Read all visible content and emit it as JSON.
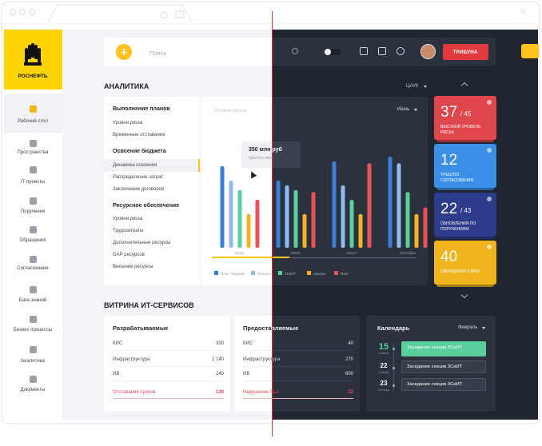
{
  "logo": "РОСНЕФТЬ",
  "nav": [
    "Рабочий стол",
    "Пространства",
    "IT-проекты",
    "Поручения",
    "Обращения",
    "Согласование",
    "База знаний",
    "Бизнес процессы",
    "Аналитика",
    "Документы"
  ],
  "header": {
    "search_placeholder": "Поиск",
    "button": "ТРИБУНА"
  },
  "analytics": {
    "title": "АНАЛИТИКА",
    "filter": "ЦАУК",
    "menu": [
      {
        "heading": "Выполнение планов",
        "items": [
          "Уровни риска",
          "Временные отставания"
        ]
      },
      {
        "heading": "Освоение бюджета",
        "items": [
          "Динамика освоения",
          "Распределение затрат",
          "Заключение договоров"
        ]
      },
      {
        "heading": "Ресурсное обеспечение",
        "items": [
          "Уровни риска",
          "Трудозатраты",
          "Дополнительные ресурсы",
          "GAP ресурсов",
          "Внешние ресурсы"
        ]
      }
    ],
    "chart": {
      "type": "bar",
      "title": "Уровни риска",
      "period": "Июнь",
      "tooltip": {
        "value": "350 млн руб",
        "caption": "прогноз, млн."
      },
      "categories": [
        "Июнь",
        "Июль",
        "Август",
        "Сентябрь"
      ],
      "series": [
        {
          "name": "План текущий",
          "color": "#3c7fdb",
          "values": [
            85,
            70,
            90,
            95
          ]
        },
        {
          "name": "Прогноз",
          "color": "#8fbbee",
          "values": [
            70,
            65,
            65,
            88
          ]
        },
        {
          "name": "ЗСиИТ",
          "color": "#5acf9d",
          "values": [
            60,
            60,
            50,
            58
          ]
        },
        {
          "name": "Заказы",
          "color": "#f4b324",
          "values": [
            35,
            35,
            35,
            35
          ]
        },
        {
          "name": "Факт",
          "color": "#ea5257",
          "values": [
            50,
            58,
            88,
            42
          ]
        }
      ],
      "ylim": [
        0,
        100
      ]
    }
  },
  "stats": [
    {
      "value": 37,
      "total": {
        "value": 45,
        "label": "/ 45"
      },
      "label": "ВЫСОКИЙ УРОВЕНЬ РИСКА",
      "color": "#e0474d"
    },
    {
      "value": 12,
      "label": "ТРЕБУЮТ СОГЛАСОВАНИЯ",
      "color": "#3b8fe8"
    },
    {
      "value": 22,
      "total": {
        "value": 43,
        "label": "/ 43"
      },
      "label": "ОБНОВЛЕНИЯ ПО ПОРУЧЕНИЯМ",
      "color": "#2e3c8c"
    },
    {
      "value": 40,
      "label": "ОБРАЩЕНИЯ К ВАМ",
      "color": "#f0b41c"
    }
  ],
  "services": {
    "title": "ВИТРИНА ИТ-СЕРВИСОВ",
    "cards": [
      {
        "title": "Разрабатываемые",
        "rows": [
          {
            "label": "КИС",
            "value": 330
          },
          {
            "label": "Инфраструктура",
            "value": {
              "value": 1140,
              "label": "1 140"
            }
          },
          {
            "label": "ИВ",
            "value": 240
          }
        ],
        "alert": {
          "label": "Отставание сроков",
          "value": 130
        }
      },
      {
        "title": "Предоставляемые",
        "rows": [
          {
            "label": "КИС",
            "value": 40
          },
          {
            "label": "Инфраструктура",
            "value": 270
          },
          {
            "label": "ИВ",
            "value": 600
          }
        ],
        "alert": {
          "label": "Нарушение SLA",
          "value": 22
        }
      }
    ]
  },
  "calendar": {
    "title": "Календарь",
    "month": "Февраль",
    "events": [
      {
        "day": 15,
        "weekday": "четверг",
        "title": "Заседание секции ЗСиИТ"
      },
      {
        "day": 22,
        "weekday": "четверг",
        "title": "Заседание секции ЗСиИТ"
      },
      {
        "day": 23,
        "weekday": "пятница",
        "title": "Заседание секции ЗСиИТ"
      }
    ]
  }
}
